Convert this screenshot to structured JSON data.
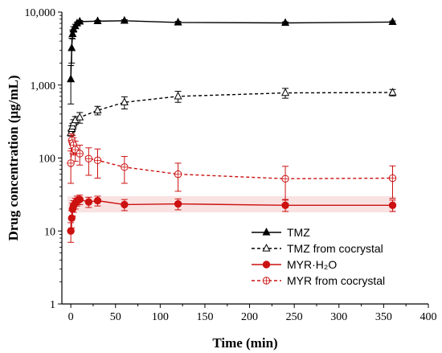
{
  "chart_data": {
    "type": "line",
    "xlabel": "Time (min)",
    "ylabel": "Drug concentration (μg/mL)",
    "xlim": [
      -10,
      400
    ],
    "ylim": [
      1,
      10000
    ],
    "yscale": "log",
    "x_ticks": [
      0,
      50,
      100,
      150,
      200,
      250,
      300,
      350,
      400
    ],
    "x_tick_labels": [
      "0",
      "50",
      "100",
      "150",
      "200",
      "250",
      "300",
      "350",
      "400"
    ],
    "y_ticks": [
      1,
      10,
      100,
      1000,
      10000
    ],
    "y_tick_labels": [
      "1",
      "10",
      "100",
      "1,000",
      "10,000"
    ],
    "grid": false,
    "legend_position": "bottom-right",
    "series": [
      {
        "name": "TMZ",
        "color": "#000000",
        "line_style": "solid",
        "marker": "filled-triangle",
        "x": [
          0,
          1,
          2,
          3,
          5,
          7,
          10,
          30,
          60,
          120,
          240,
          360
        ],
        "y": [
          1200,
          3200,
          5000,
          5800,
          6400,
          7000,
          7400,
          7500,
          7600,
          7200,
          7100,
          7300
        ],
        "err": [
          650,
          1200,
          700,
          500,
          400,
          300,
          250,
          200,
          250,
          250,
          250,
          250
        ]
      },
      {
        "name": "TMZ from cocrystal",
        "color": "#000000",
        "line_style": "dashed",
        "marker": "open-triangle",
        "x": [
          0,
          1,
          2,
          3,
          5,
          10,
          30,
          60,
          120,
          240,
          360
        ],
        "y": [
          220,
          250,
          270,
          300,
          330,
          360,
          450,
          580,
          700,
          780,
          790
        ],
        "err": [
          20,
          25,
          30,
          35,
          40,
          60,
          60,
          110,
          120,
          120,
          80
        ]
      },
      {
        "name": "MYR·H₂O",
        "color": "#cc1111",
        "line_style": "solid",
        "marker": "filled-circle",
        "x": [
          0,
          1,
          2,
          3,
          5,
          7,
          10,
          20,
          30,
          60,
          120,
          240,
          360
        ],
        "y": [
          10,
          15,
          20,
          22,
          24,
          26,
          27,
          25,
          26,
          23,
          23.5,
          22.5,
          22.5
        ],
        "err": [
          3,
          4,
          4,
          4,
          4,
          4,
          4,
          4,
          4,
          4,
          4,
          4,
          4
        ]
      },
      {
        "name": "MYR from cocrystal",
        "color": "#cc1111",
        "line_style": "dashed",
        "marker": "open-circle-cross",
        "x": [
          0,
          1,
          2,
          3,
          5,
          10,
          20,
          30,
          60,
          120,
          240,
          360
        ],
        "y": [
          85,
          175,
          160,
          150,
          130,
          115,
          98,
          93,
          75,
          60,
          52,
          53
        ],
        "err": [
          40,
          40,
          45,
          40,
          40,
          35,
          40,
          40,
          30,
          25,
          25,
          25
        ]
      }
    ]
  }
}
